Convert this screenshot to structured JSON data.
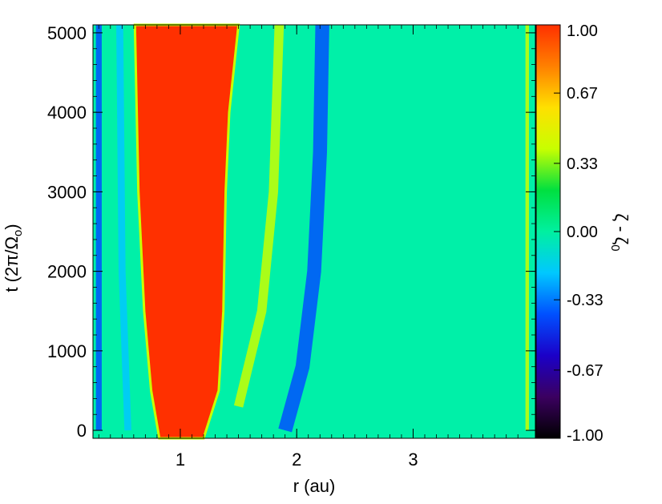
{
  "chart_data": {
    "type": "heatmap",
    "xlabel": "r (au)",
    "ylabel": "t (2π/Ω",
    "ylabel_sub": "o",
    "ylabel_tail": ")",
    "colorbar_label": "ζ - ζ",
    "colorbar_label_sub": "0",
    "xlim": [
      0.25,
      4.05
    ],
    "ylim": [
      -100,
      5100
    ],
    "x_ticks": [
      1,
      2,
      3
    ],
    "x_tick_labels": [
      "1",
      "2",
      "3"
    ],
    "y_ticks": [
      0,
      1000,
      2000,
      3000,
      4000,
      5000
    ],
    "y_tick_labels": [
      "0",
      "1000",
      "2000",
      "3000",
      "4000",
      "5000"
    ],
    "colorbar_range": [
      -1.0,
      1.0
    ],
    "colorbar_ticks": [
      1.0,
      0.67,
      0.33,
      0.0,
      -0.33,
      -0.67,
      -1.0
    ],
    "colorbar_tick_labels": [
      "1.00",
      "0.67",
      "0.33",
      "0.00",
      "-0.33",
      "-0.67",
      "-1.00"
    ],
    "colormap": [
      "#000000",
      "#3b0060",
      "#1b00c8",
      "#0050ff",
      "#00c8ff",
      "#00f0a0",
      "#00e040",
      "#c8ff00",
      "#ffe000",
      "#ff8000",
      "#ff3000"
    ],
    "background_value": 0.08,
    "features": [
      {
        "kind": "saturated-band",
        "value": 1.0,
        "left_edge": [
          [
            -100,
            0.82
          ],
          [
            500,
            0.75
          ],
          [
            1500,
            0.69
          ],
          [
            3000,
            0.64
          ],
          [
            5100,
            0.61
          ]
        ],
        "right_edge": [
          [
            -100,
            1.2
          ],
          [
            500,
            1.33
          ],
          [
            1500,
            1.37
          ],
          [
            3000,
            1.39
          ],
          [
            4000,
            1.42
          ],
          [
            5100,
            1.5
          ]
        ]
      },
      {
        "kind": "ridge",
        "value": -0.5,
        "width": 0.12,
        "path": [
          [
            0,
            1.9
          ],
          [
            800,
            2.05
          ],
          [
            2000,
            2.15
          ],
          [
            3500,
            2.2
          ],
          [
            5100,
            2.22
          ]
        ]
      },
      {
        "kind": "ridge",
        "value": 0.3,
        "width": 0.08,
        "path": [
          [
            300,
            1.5
          ],
          [
            1500,
            1.7
          ],
          [
            3000,
            1.8
          ],
          [
            5100,
            1.85
          ]
        ]
      },
      {
        "kind": "ridge",
        "value": -0.25,
        "width": 0.06,
        "path": [
          [
            0,
            0.55
          ],
          [
            2000,
            0.5
          ],
          [
            5100,
            0.48
          ]
        ]
      },
      {
        "kind": "ridge",
        "value": -0.5,
        "width": 0.05,
        "path": [
          [
            0,
            0.3
          ],
          [
            5100,
            0.3
          ]
        ]
      },
      {
        "kind": "ridge",
        "value": 0.45,
        "width": 0.03,
        "path": [
          [
            0,
            3.98
          ],
          [
            5100,
            3.98
          ]
        ]
      }
    ]
  }
}
